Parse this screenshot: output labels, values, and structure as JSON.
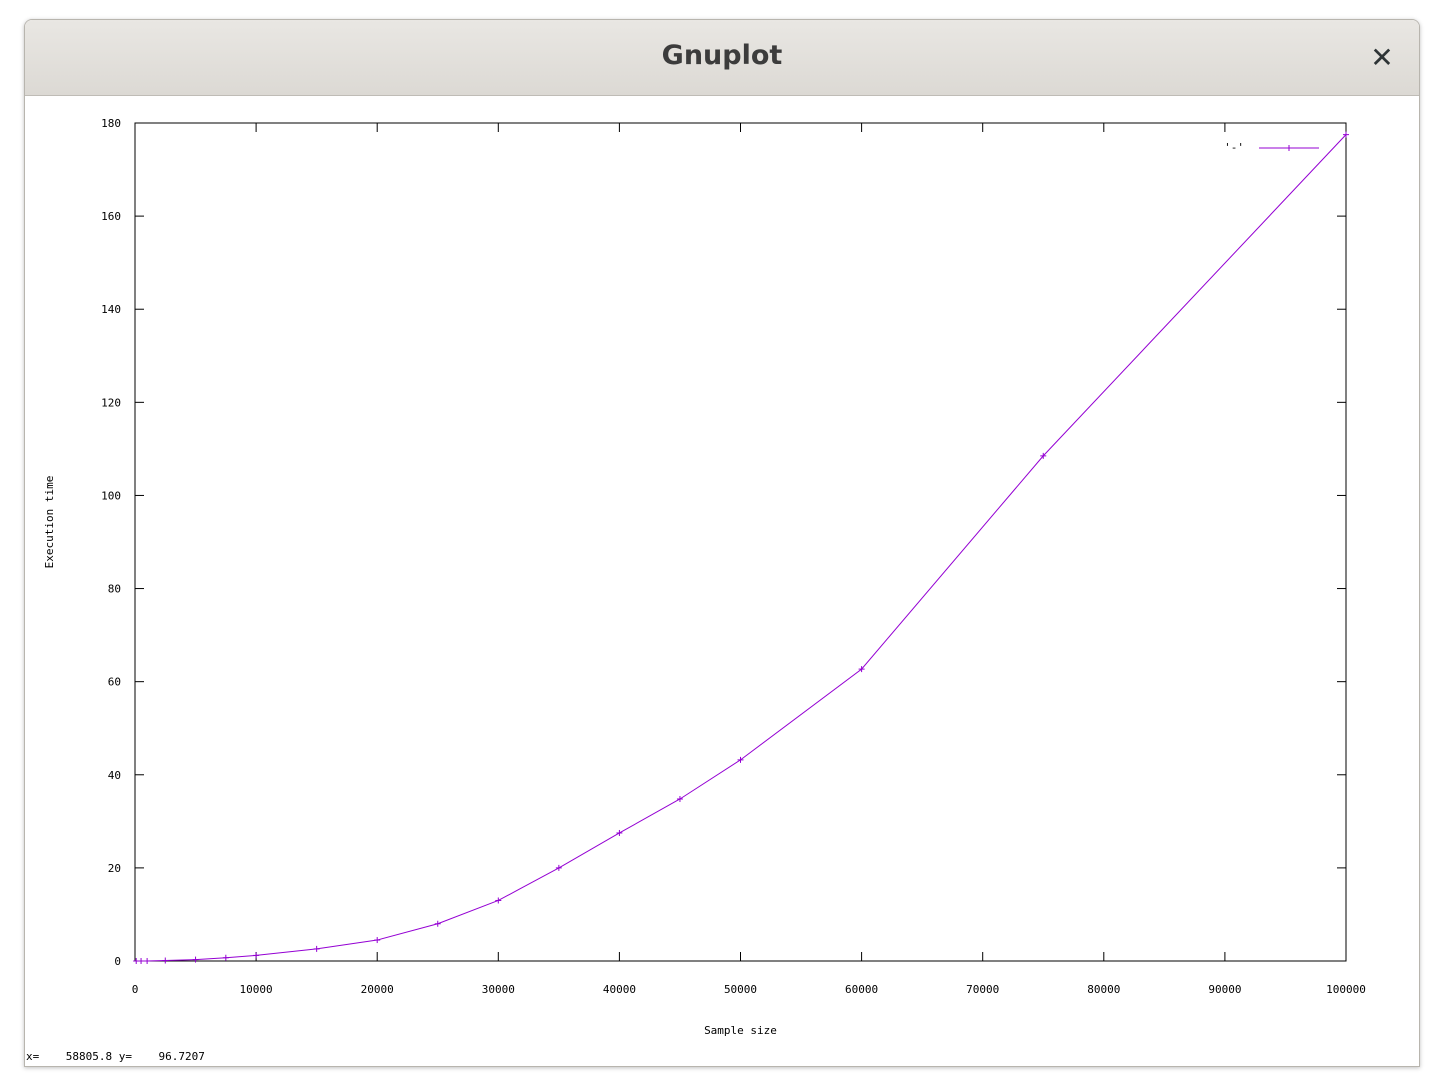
{
  "window": {
    "title": "Gnuplot",
    "close_icon": "close-icon"
  },
  "status": {
    "x_label": "x=",
    "x_value": "58805.8",
    "y_label": "y=",
    "y_value": "96.7207"
  },
  "colors": {
    "series": "#9400d3"
  },
  "chart_data": {
    "type": "line",
    "title": "",
    "xlabel": "Sample size",
    "ylabel": "Execution time",
    "xlim": [
      0,
      100000
    ],
    "ylim": [
      0,
      180
    ],
    "xticks": [
      0,
      10000,
      20000,
      30000,
      40000,
      50000,
      60000,
      70000,
      80000,
      90000,
      100000
    ],
    "yticks": [
      0,
      20,
      40,
      60,
      80,
      100,
      120,
      140,
      160,
      180
    ],
    "grid": false,
    "legend": "top-right",
    "series": [
      {
        "name": "'-'",
        "x": [
          100,
          500,
          1000,
          2500,
          5000,
          7500,
          10000,
          15000,
          20000,
          25000,
          30000,
          35000,
          40000,
          45000,
          50000,
          60000,
          75000,
          100000
        ],
        "y": [
          0,
          0,
          0,
          0.1,
          0.3,
          0.7,
          1.2,
          2.6,
          4.5,
          8,
          13,
          20,
          27.5,
          34.8,
          43.2,
          62.7,
          108.5,
          177.5
        ]
      }
    ]
  }
}
